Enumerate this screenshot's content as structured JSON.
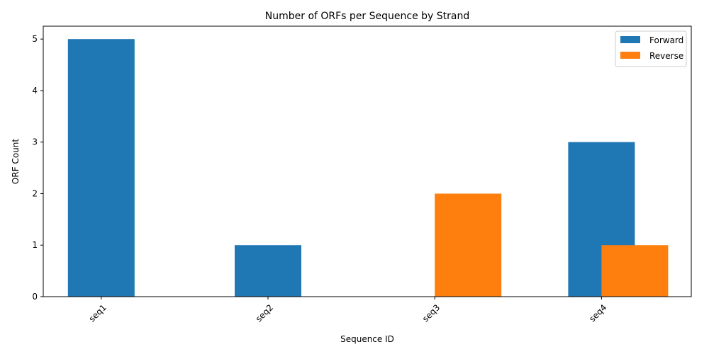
{
  "chart_data": {
    "type": "bar",
    "title": "Number of ORFs per Sequence by Strand",
    "xlabel": "Sequence ID",
    "ylabel": "ORF Count",
    "categories": [
      "seq1",
      "seq2",
      "seq3",
      "seq4"
    ],
    "series": [
      {
        "name": "Forward",
        "color": "#1f77b4",
        "values": [
          5,
          1,
          0,
          3
        ]
      },
      {
        "name": "Reverse",
        "color": "#ff7f0e",
        "values": [
          0,
          0,
          2,
          1
        ]
      }
    ],
    "ylim": [
      0,
      5.25
    ],
    "yticks": [
      0,
      1,
      2,
      3,
      4,
      5
    ],
    "legend": "top-right",
    "grid": false,
    "bar_mode": "overlapping-offset"
  }
}
